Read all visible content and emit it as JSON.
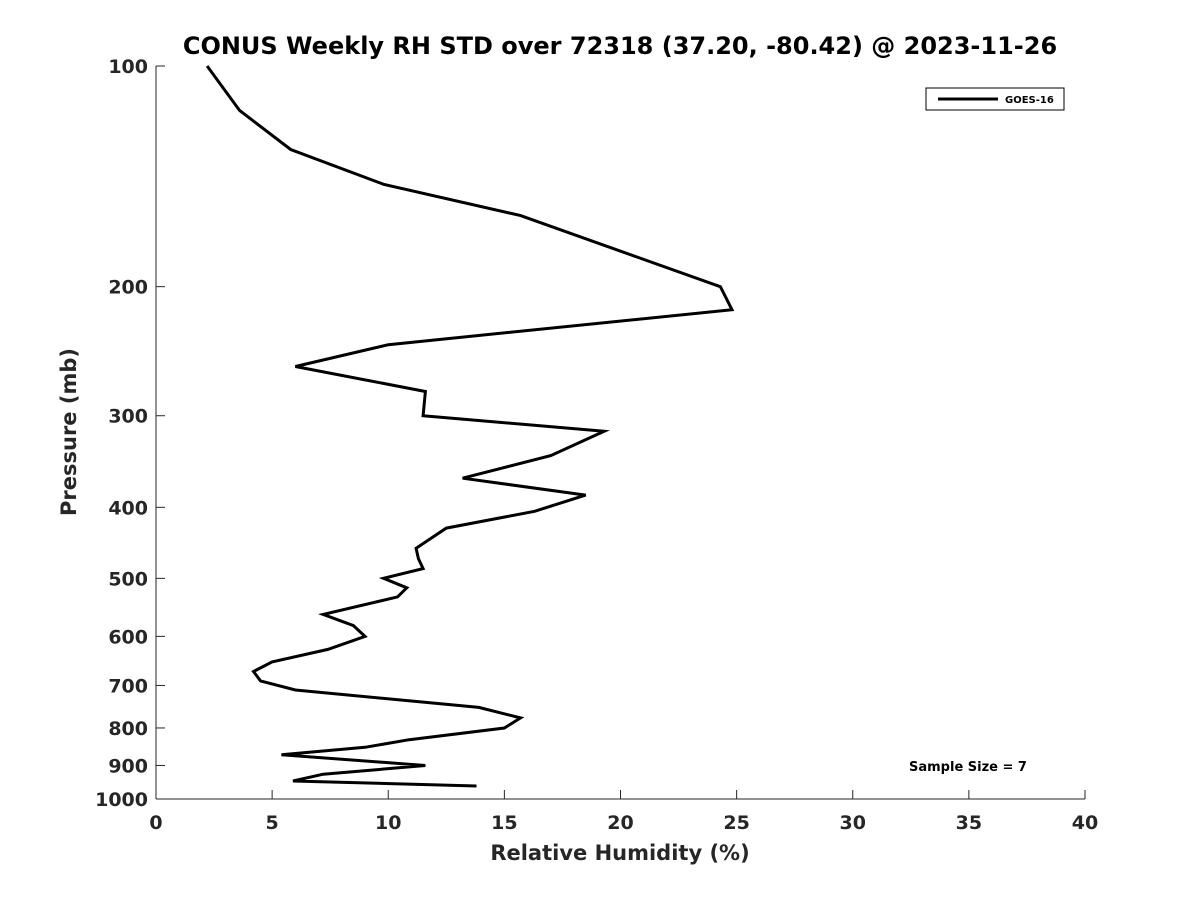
{
  "chart_data": {
    "type": "line",
    "title": "CONUS Weekly RH STD over 72318 (37.20, -80.42) @ 2023-11-26",
    "xlabel": "Relative Humidity (%)",
    "ylabel": "Pressure (mb)",
    "xlim": [
      0,
      40
    ],
    "ylim": [
      1000,
      100
    ],
    "yscale": "log",
    "y_reversed": true,
    "xticks": [
      0,
      5,
      10,
      15,
      20,
      25,
      30,
      35,
      40
    ],
    "xtick_labels": [
      "0",
      "5",
      "10",
      "15",
      "20",
      "25",
      "30",
      "35",
      "40"
    ],
    "yticks": [
      100,
      200,
      300,
      400,
      500,
      600,
      700,
      800,
      900,
      1000
    ],
    "ytick_labels": [
      "100",
      "200",
      "300",
      "400",
      "500",
      "600",
      "700",
      "800",
      "900",
      "1000"
    ],
    "grid": false,
    "legend_position": "top-right",
    "annotation": "Sample Size = 7",
    "series": [
      {
        "name": "GOES-16",
        "color": "#000000",
        "x": [
          2.2,
          3.6,
          5.8,
          9.8,
          15.7,
          24.3,
          24.8,
          10.0,
          6.0,
          11.6,
          11.5,
          19.3,
          17.0,
          13.2,
          18.5,
          16.3,
          12.5,
          11.2,
          11.3,
          11.5,
          9.8,
          10.8,
          10.4,
          7.2,
          8.5,
          9.0,
          7.4,
          5.0,
          4.2,
          4.5,
          6.0,
          13.9,
          15.7,
          15.0,
          10.9,
          9.0,
          5.4,
          11.6,
          7.2,
          5.9,
          13.8
        ],
        "y": [
          100,
          115,
          130,
          145,
          160,
          200,
          215,
          240,
          257,
          278,
          300,
          315,
          340,
          365,
          385,
          405,
          427,
          455,
          470,
          485,
          500,
          515,
          530,
          560,
          580,
          600,
          625,
          650,
          670,
          690,
          710,
          750,
          775,
          800,
          830,
          850,
          870,
          900,
          925,
          945,
          960
        ]
      }
    ]
  }
}
